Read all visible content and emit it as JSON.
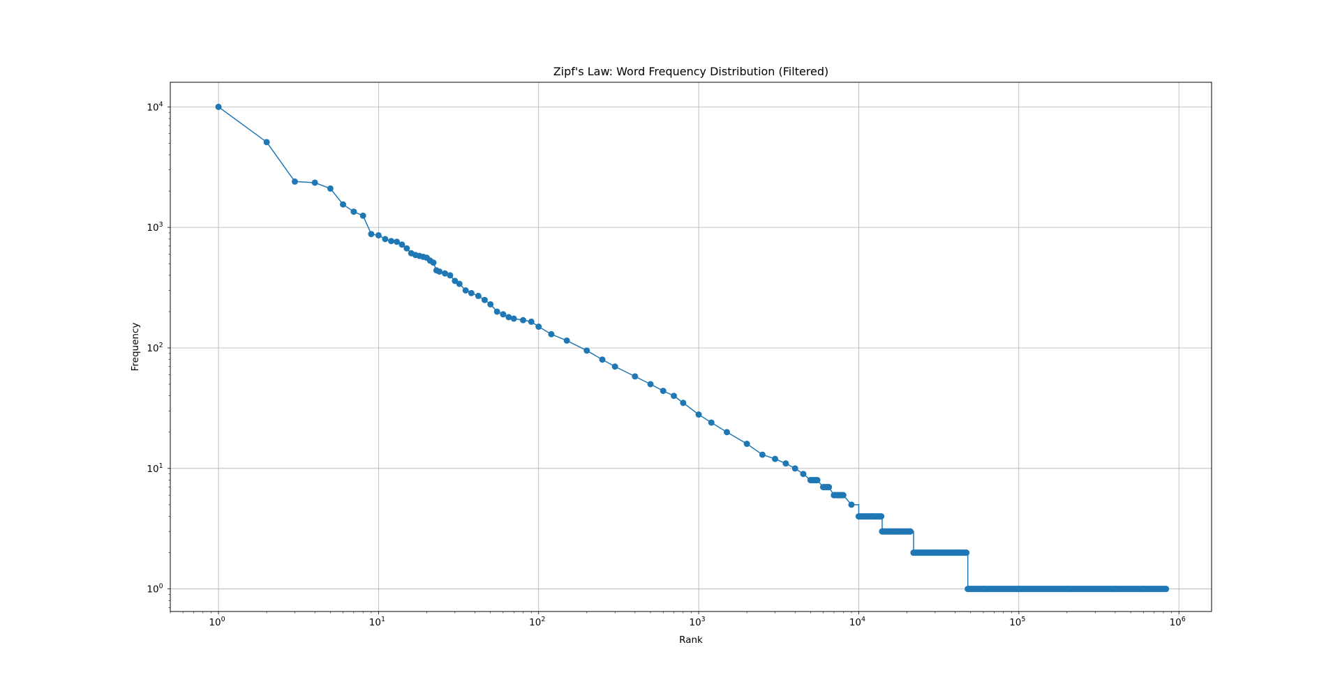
{
  "chart_data": {
    "type": "line",
    "title": "Zipf's Law: Word Frequency Distribution (Filtered)",
    "xlabel": "Rank",
    "ylabel": "Frequency",
    "xscale": "log",
    "yscale": "log",
    "xlim": [
      0.5,
      1600000
    ],
    "ylim": [
      0.65,
      16000
    ],
    "grid": true,
    "x_ticks": [
      {
        "value": 1,
        "base": "10",
        "exp": "0"
      },
      {
        "value": 10,
        "base": "10",
        "exp": "1"
      },
      {
        "value": 100,
        "base": "10",
        "exp": "2"
      },
      {
        "value": 1000,
        "base": "10",
        "exp": "3"
      },
      {
        "value": 10000,
        "base": "10",
        "exp": "4"
      },
      {
        "value": 100000,
        "base": "10",
        "exp": "5"
      },
      {
        "value": 1000000,
        "base": "10",
        "exp": "6"
      }
    ],
    "y_ticks": [
      {
        "value": 1,
        "base": "10",
        "exp": "0"
      },
      {
        "value": 10,
        "base": "10",
        "exp": "1"
      },
      {
        "value": 100,
        "base": "10",
        "exp": "2"
      },
      {
        "value": 1000,
        "base": "10",
        "exp": "3"
      },
      {
        "value": 10000,
        "base": "10",
        "exp": "4"
      }
    ],
    "series": [
      {
        "color": "#1f77b4",
        "marker": "circle",
        "x": [
          1,
          2,
          3,
          4,
          5,
          6,
          7,
          8,
          9,
          10,
          11,
          12,
          13,
          14,
          15,
          16,
          17,
          18,
          19,
          20,
          21,
          22,
          23,
          24,
          26,
          28,
          30,
          32,
          35,
          38,
          42,
          46,
          50,
          55,
          60,
          65,
          70,
          80,
          90,
          100,
          120,
          150,
          200,
          250,
          300,
          400,
          500,
          600,
          700,
          800,
          1000,
          1200,
          1500,
          2000,
          2500,
          3000,
          3500,
          4000,
          4500,
          5000,
          5500,
          6000,
          6500,
          7000,
          7500,
          8000,
          9000,
          10000,
          12000,
          13800,
          14000,
          17000,
          21000,
          22000,
          30000,
          40000,
          47000,
          48000,
          60000,
          100000,
          200000,
          400000,
          600000,
          830000
        ],
        "y": [
          10000,
          5100,
          2400,
          2350,
          2100,
          1550,
          1350,
          1250,
          880,
          860,
          800,
          770,
          760,
          720,
          670,
          610,
          590,
          580,
          570,
          560,
          530,
          510,
          440,
          430,
          415,
          400,
          360,
          340,
          300,
          285,
          270,
          250,
          230,
          200,
          190,
          180,
          175,
          170,
          165,
          150,
          130,
          115,
          95,
          80,
          70,
          58,
          50,
          44,
          40,
          35,
          28,
          24,
          20,
          16,
          13,
          12,
          11,
          10,
          9,
          8,
          8,
          7,
          7,
          6,
          6,
          6,
          5,
          4,
          4,
          4,
          3,
          3,
          3,
          2,
          2,
          2,
          2,
          1,
          1,
          1,
          1,
          1,
          1,
          1
        ]
      }
    ]
  }
}
